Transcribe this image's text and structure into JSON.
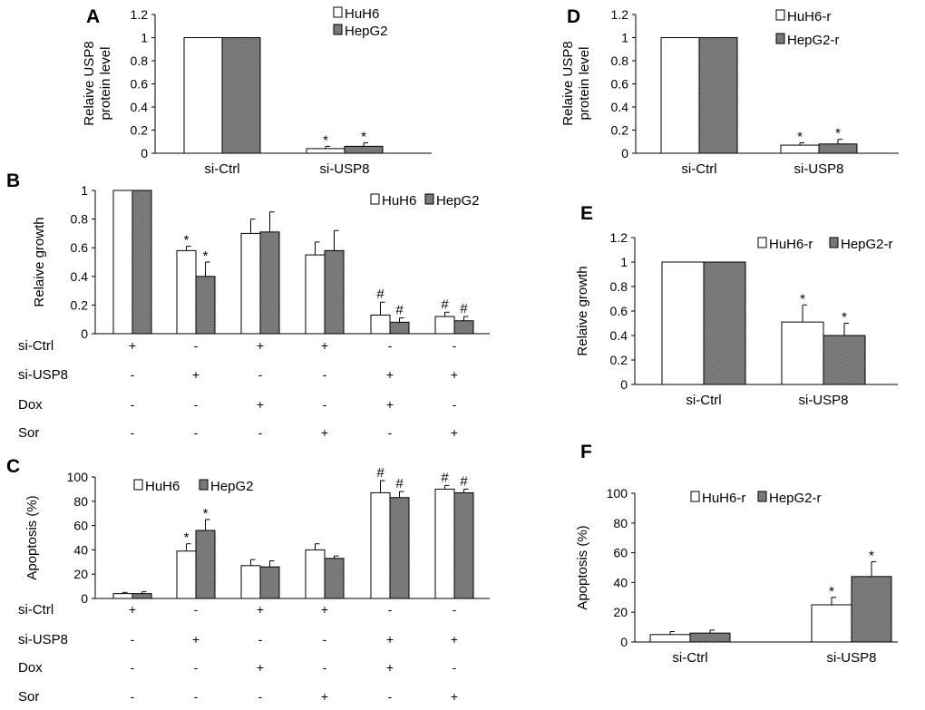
{
  "chart_data": [
    {
      "id": "A",
      "type": "bar",
      "panel_label": "A",
      "ylabel": [
        "Relaive USP8",
        "protein level"
      ],
      "ylim": [
        0,
        1.2
      ],
      "yticks": [
        "0",
        "0.2",
        "0.4",
        "0.6",
        "0.8",
        "1",
        "1.2"
      ],
      "categories": [
        "si-Ctrl",
        "si-USP8"
      ],
      "series": [
        {
          "name": "HuH6",
          "values": [
            1,
            0.04
          ],
          "errors": [
            0,
            0.02
          ],
          "annotations": [
            "",
            "*"
          ]
        },
        {
          "name": "HepG2",
          "values": [
            1,
            0.06
          ],
          "errors": [
            0,
            0.03
          ],
          "annotations": [
            "",
            "*"
          ]
        }
      ]
    },
    {
      "id": "B",
      "type": "bar",
      "panel_label": "B",
      "ylabel": [
        "Relaive growth"
      ],
      "ylim": [
        0,
        1
      ],
      "yticks": [
        "0",
        "0.2",
        "0.4",
        "0.6",
        "0.8",
        "1"
      ],
      "conditions": [
        {
          "label": "si-Ctrl",
          "marks": [
            "+",
            "-",
            "+",
            "+",
            "-",
            "-"
          ]
        },
        {
          "label": "si-USP8",
          "marks": [
            "-",
            "+",
            "-",
            "-",
            "+",
            "+"
          ]
        },
        {
          "label": "Dox",
          "marks": [
            "-",
            "-",
            "+",
            "-",
            "+",
            "-"
          ]
        },
        {
          "label": "Sor",
          "marks": [
            "-",
            "-",
            "-",
            "+",
            "-",
            "+"
          ]
        }
      ],
      "series": [
        {
          "name": "HuH6",
          "values": [
            1,
            0.58,
            0.7,
            0.55,
            0.13,
            0.12
          ],
          "errors": [
            0,
            0.03,
            0.1,
            0.09,
            0.09,
            0.03
          ],
          "annotations": [
            "",
            "*",
            "",
            "",
            "#",
            "#"
          ]
        },
        {
          "name": "HepG2",
          "values": [
            1,
            0.4,
            0.71,
            0.58,
            0.08,
            0.09
          ],
          "errors": [
            0,
            0.1,
            0.14,
            0.14,
            0.03,
            0.03
          ],
          "annotations": [
            "",
            "*",
            "",
            "",
            "#",
            "#"
          ]
        }
      ]
    },
    {
      "id": "C",
      "type": "bar",
      "panel_label": "C",
      "ylabel": [
        "Apoptosis (%)"
      ],
      "ylim": [
        0,
        100
      ],
      "yticks": [
        "0",
        "20",
        "40",
        "60",
        "80",
        "100"
      ],
      "conditions": [
        {
          "label": "si-Ctrl",
          "marks": [
            "+",
            "-",
            "+",
            "+",
            "-",
            "-"
          ]
        },
        {
          "label": "si-USP8",
          "marks": [
            "-",
            "+",
            "-",
            "-",
            "+",
            "+"
          ]
        },
        {
          "label": "Dox",
          "marks": [
            "-",
            "-",
            "+",
            "-",
            "+",
            "-"
          ]
        },
        {
          "label": "Sor",
          "marks": [
            "-",
            "-",
            "-",
            "+",
            "-",
            "+"
          ]
        }
      ],
      "series": [
        {
          "name": "HuH6",
          "values": [
            4,
            39,
            27,
            40,
            87,
            90
          ],
          "errors": [
            1,
            6,
            5,
            5,
            10,
            3
          ],
          "annotations": [
            "",
            "*",
            "",
            "",
            "#",
            "#"
          ]
        },
        {
          "name": "HepG2",
          "values": [
            4,
            56,
            26,
            33,
            83,
            87
          ],
          "errors": [
            1.5,
            9,
            5,
            2,
            5,
            3
          ],
          "annotations": [
            "",
            "*",
            "",
            "",
            "#",
            "#"
          ]
        }
      ]
    },
    {
      "id": "D",
      "type": "bar",
      "panel_label": "D",
      "ylabel": [
        "Relaive USP8",
        "protein level"
      ],
      "ylim": [
        0,
        1.2
      ],
      "yticks": [
        "0",
        "0.2",
        "0.4",
        "0.6",
        "0.8",
        "1",
        "1.2"
      ],
      "categories": [
        "si-Ctrl",
        "si-USP8"
      ],
      "series": [
        {
          "name": "HuH6-r",
          "values": [
            1,
            0.07
          ],
          "errors": [
            0,
            0.02
          ],
          "annotations": [
            "",
            "*"
          ]
        },
        {
          "name": "HepG2-r",
          "values": [
            1,
            0.08
          ],
          "errors": [
            0,
            0.04
          ],
          "annotations": [
            "",
            "*"
          ]
        }
      ]
    },
    {
      "id": "E",
      "type": "bar",
      "panel_label": "E",
      "ylabel": [
        "Relaive growth"
      ],
      "ylim": [
        0,
        1.2
      ],
      "yticks": [
        "0",
        "0.2",
        "0.4",
        "0.6",
        "0.8",
        "1",
        "1.2"
      ],
      "categories": [
        "si-Ctrl",
        "si-USP8"
      ],
      "series": [
        {
          "name": "HuH6-r",
          "values": [
            1,
            0.51
          ],
          "errors": [
            0,
            0.14
          ],
          "annotations": [
            "",
            "*"
          ]
        },
        {
          "name": "HepG2-r",
          "values": [
            1,
            0.4
          ],
          "errors": [
            0,
            0.1
          ],
          "annotations": [
            "",
            "*"
          ]
        }
      ]
    },
    {
      "id": "F",
      "type": "bar",
      "panel_label": "F",
      "ylabel": [
        "Apoptosis (%)"
      ],
      "ylim": [
        0,
        100
      ],
      "yticks": [
        "0",
        "20",
        "40",
        "60",
        "80",
        "100"
      ],
      "categories": [
        "si-Ctrl",
        "si-USP8"
      ],
      "series": [
        {
          "name": "HuH6-r",
          "values": [
            5,
            25
          ],
          "errors": [
            2,
            5
          ],
          "annotations": [
            "",
            "*"
          ]
        },
        {
          "name": "HepG2-r",
          "values": [
            6,
            44
          ],
          "errors": [
            2,
            10
          ],
          "annotations": [
            "",
            "*"
          ]
        }
      ]
    }
  ],
  "colors": {
    "series1_fill": "#ffffff",
    "series2_fill": "#8a8a8a",
    "stroke": "#000000",
    "text": "#000000"
  }
}
